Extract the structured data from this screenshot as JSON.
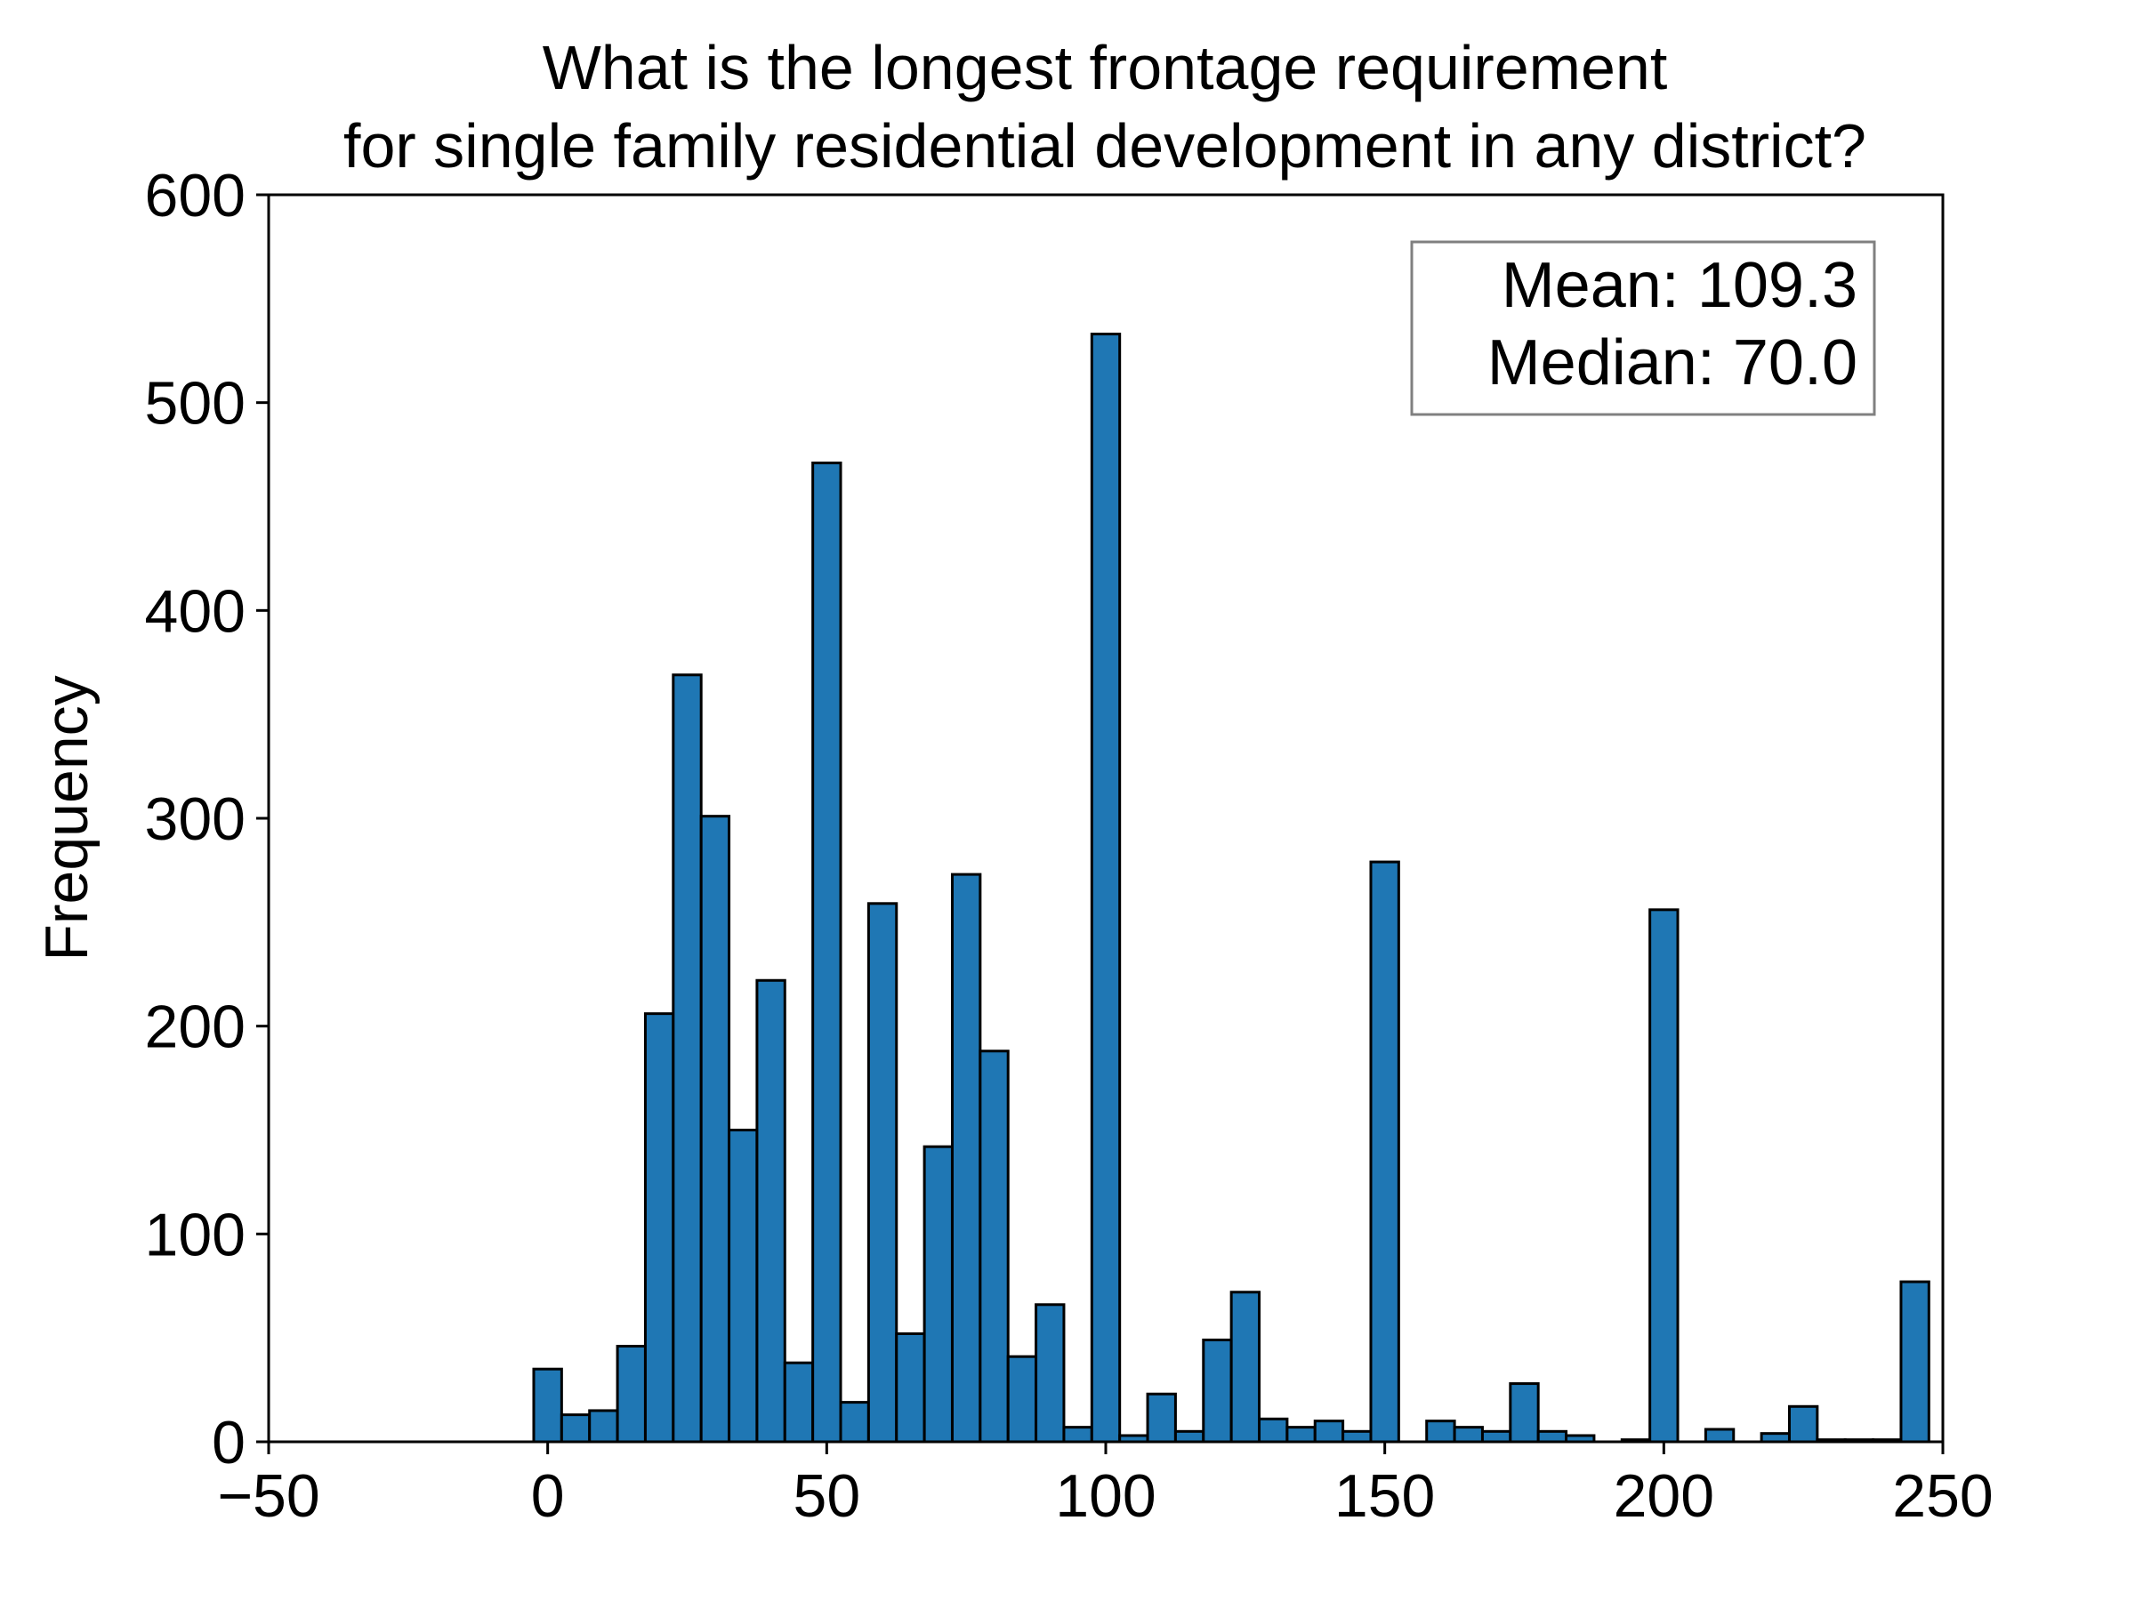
{
  "chart_data": {
    "type": "bar",
    "title": [
      "What is the longest frontage requirement",
      "for single family residential development in any district?"
    ],
    "xlabel": "",
    "ylabel": "Frequency",
    "xlim": [
      -50,
      250
    ],
    "ylim": [
      0,
      600
    ],
    "xticks": [
      "−50",
      "0",
      "50",
      "100",
      "150",
      "200",
      "250"
    ],
    "xtick_values": [
      -50,
      0,
      50,
      100,
      150,
      200,
      250
    ],
    "yticks": [
      "0",
      "100",
      "200",
      "300",
      "400",
      "500",
      "600"
    ],
    "ytick_values": [
      0,
      100,
      200,
      300,
      400,
      500,
      600
    ],
    "grid": false,
    "bar_color": "#1f77b4",
    "edge_color": "#000000",
    "bin_edges": [
      -2.5,
      2.5,
      7.5,
      12.5,
      17.5,
      22.5,
      27.5,
      32.5,
      37.5,
      42.5,
      47.5,
      52.5,
      57.5,
      62.5,
      67.5,
      72.5,
      77.5,
      82.5,
      87.5,
      92.5,
      97.5,
      102.5,
      107.5,
      112.5,
      117.5,
      122.5,
      127.5,
      132.5,
      137.5,
      142.5,
      147.5,
      152.5,
      157.5,
      162.5,
      167.5,
      172.5,
      177.5,
      182.5,
      187.5,
      192.5,
      197.5,
      202.5,
      207.5,
      212.5,
      217.5,
      222.5,
      227.5,
      232.5,
      237.5,
      242.5,
      247.5
    ],
    "values": [
      35,
      13,
      15,
      46,
      206,
      369,
      301,
      150,
      222,
      38,
      471,
      19,
      259,
      52,
      142,
      273,
      188,
      41,
      66,
      7,
      533,
      3,
      23,
      5,
      49,
      72,
      11,
      7,
      10,
      5,
      279,
      0,
      10,
      7,
      5,
      28,
      5,
      3,
      0,
      1,
      256,
      0,
      6,
      0,
      4,
      17,
      1,
      1,
      1,
      77
    ],
    "annotation": {
      "lines": [
        "Mean: 109.3",
        "Median: 70.0"
      ],
      "placement": "top-right",
      "border_color": "#808080"
    }
  }
}
